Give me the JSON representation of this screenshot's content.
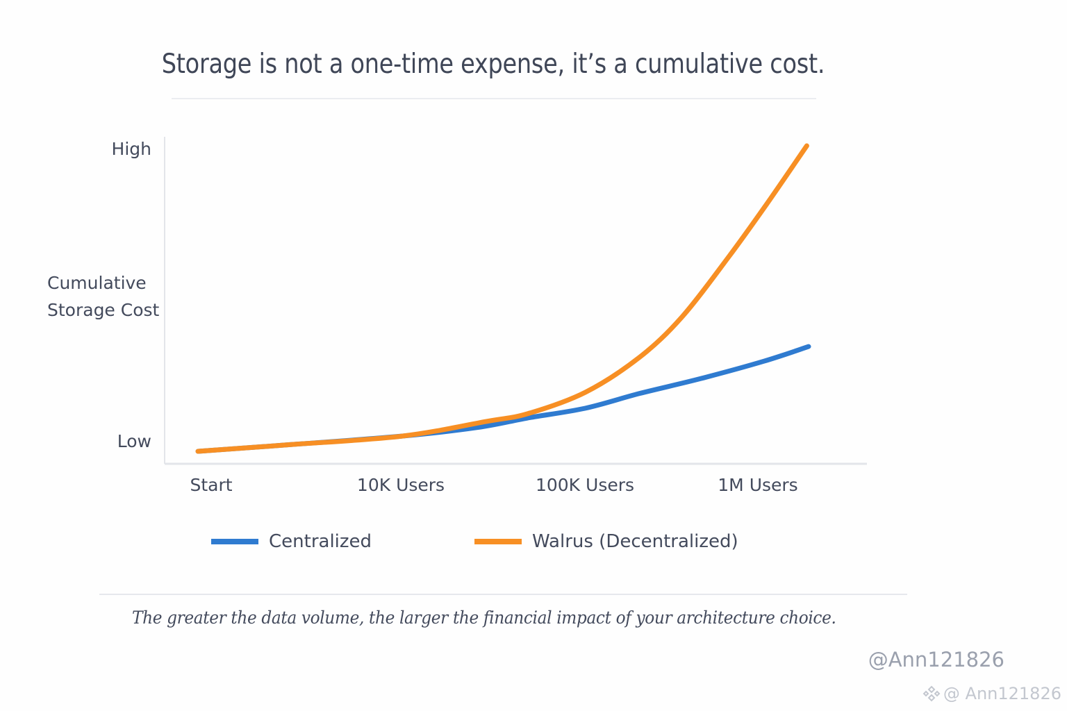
{
  "header": {
    "title": "Storage is not a one-time expense, it’s a cumulative cost."
  },
  "chart_data": {
    "type": "line",
    "title": "Storage is not a one-time expense, it’s a cumulative cost.",
    "xlabel": "",
    "ylabel": "Cumulative Storage Cost",
    "ylabel_lines": [
      "Cumulative",
      "Storage Cost"
    ],
    "y_tick_labels": [
      {
        "label": "High",
        "value": 100
      },
      {
        "label": "Low",
        "value": 0
      }
    ],
    "categories": [
      "Start",
      "10K Users",
      "100K Users",
      "1M Users"
    ],
    "category_positions": [
      0,
      1,
      2,
      3
    ],
    "xlim": [
      -0.18,
      3.59
    ],
    "ylim": [
      -3,
      105
    ],
    "grid": false,
    "legend_position": "bottom",
    "series": [
      {
        "name": "Centralized",
        "color": "#2f7bd0",
        "points": [
          [
            0,
            0
          ],
          [
            0.5,
            2.2
          ],
          [
            1.1,
            5.0
          ],
          [
            1.5,
            7.8
          ],
          [
            1.77,
            10.9
          ],
          [
            2.08,
            14.1
          ],
          [
            2.37,
            18.9
          ],
          [
            2.7,
            23.8
          ],
          [
            3.04,
            29.5
          ],
          [
            3.28,
            34.3
          ]
        ]
      },
      {
        "name": "Walrus (Decentralized)",
        "color": "#f78f24",
        "points": [
          [
            0,
            0
          ],
          [
            0.5,
            2.2
          ],
          [
            1.1,
            5.0
          ],
          [
            1.55,
            9.8
          ],
          [
            1.77,
            12.3
          ],
          [
            2.08,
            19.3
          ],
          [
            2.37,
            30.7
          ],
          [
            2.6,
            44.0
          ],
          [
            2.85,
            63.6
          ],
          [
            3.05,
            80.5
          ],
          [
            3.27,
            100
          ]
        ]
      }
    ]
  },
  "footer": {
    "caption": "The greater the data volume, the larger the financial impact of your architecture choice."
  },
  "watermarks": {
    "primary": "@Ann121826",
    "secondary": "@ Ann121826",
    "icon": "binance-logo-icon"
  }
}
